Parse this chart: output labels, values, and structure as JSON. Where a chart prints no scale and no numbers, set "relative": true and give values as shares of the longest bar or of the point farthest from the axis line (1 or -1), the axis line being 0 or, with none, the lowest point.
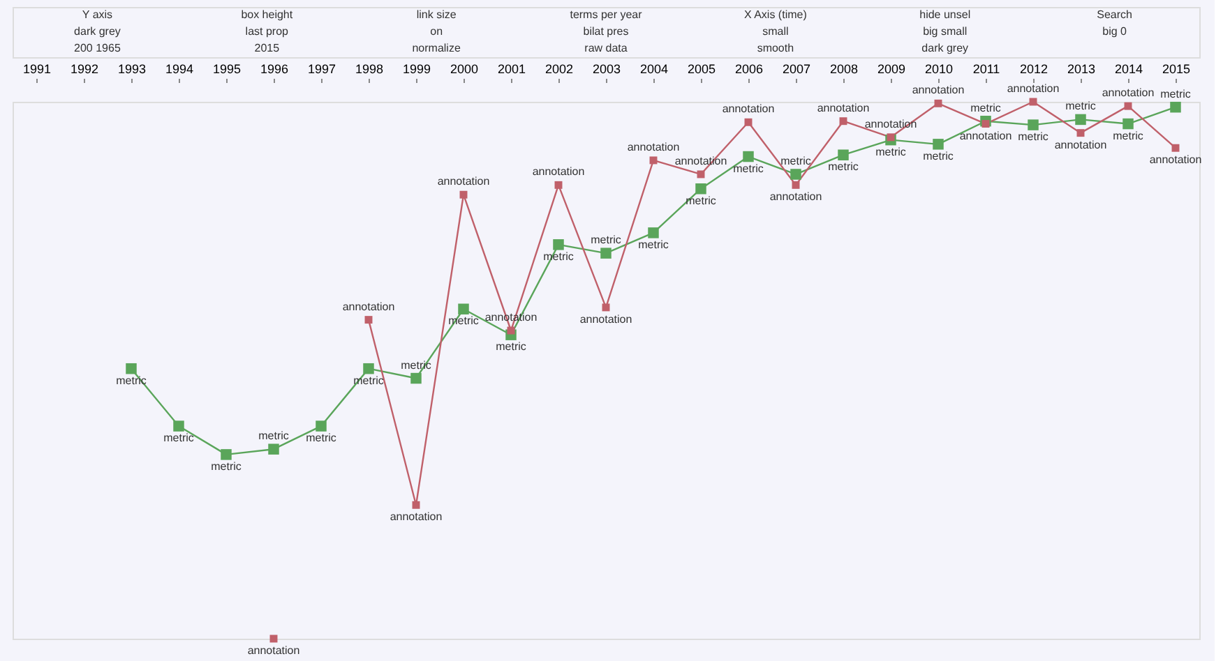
{
  "chart_data": {
    "type": "line",
    "relative": true,
    "marker": "square",
    "line_style": "solid",
    "grid": false,
    "legend": false,
    "categories": [
      "1991",
      "1992",
      "1993",
      "1994",
      "1995",
      "1996",
      "1997",
      "1998",
      "1999",
      "2000",
      "2001",
      "2002",
      "2003",
      "2004",
      "2005",
      "2006",
      "2007",
      "2008",
      "2009",
      "2010",
      "2011",
      "2012",
      "2013",
      "2014",
      "2015"
    ],
    "series": [
      {
        "name": "metric",
        "color": "#5aa55a",
        "values": [
          null,
          null,
          0.503,
          0.396,
          0.343,
          0.353,
          0.396,
          0.503,
          0.485,
          0.614,
          0.566,
          0.734,
          0.718,
          0.756,
          0.838,
          0.898,
          0.865,
          0.901,
          0.929,
          0.921,
          0.964,
          0.957,
          0.967,
          0.959,
          0.99
        ]
      },
      {
        "name": "annotation",
        "color": "#c0606a",
        "values": [
          null,
          null,
          null,
          null,
          null,
          0,
          null,
          0.594,
          0.249,
          0.827,
          0.574,
          0.845,
          0.617,
          0.891,
          0.865,
          0.962,
          0.845,
          0.964,
          0.934,
          0.997,
          0.959,
          1.0,
          0.942,
          0.992,
          0.914
        ]
      }
    ],
    "annotations": [
      "Y axis",
      "box height",
      "link size",
      "terms per year",
      "X Axis (time)",
      "hide unsel",
      "Search",
      "dark grey",
      "last prop",
      "on",
      "bilat pres",
      "small",
      "big small",
      "big 0",
      "200 1965",
      "2015",
      "normalize",
      "raw data",
      "smooth",
      "dark grey"
    ]
  }
}
